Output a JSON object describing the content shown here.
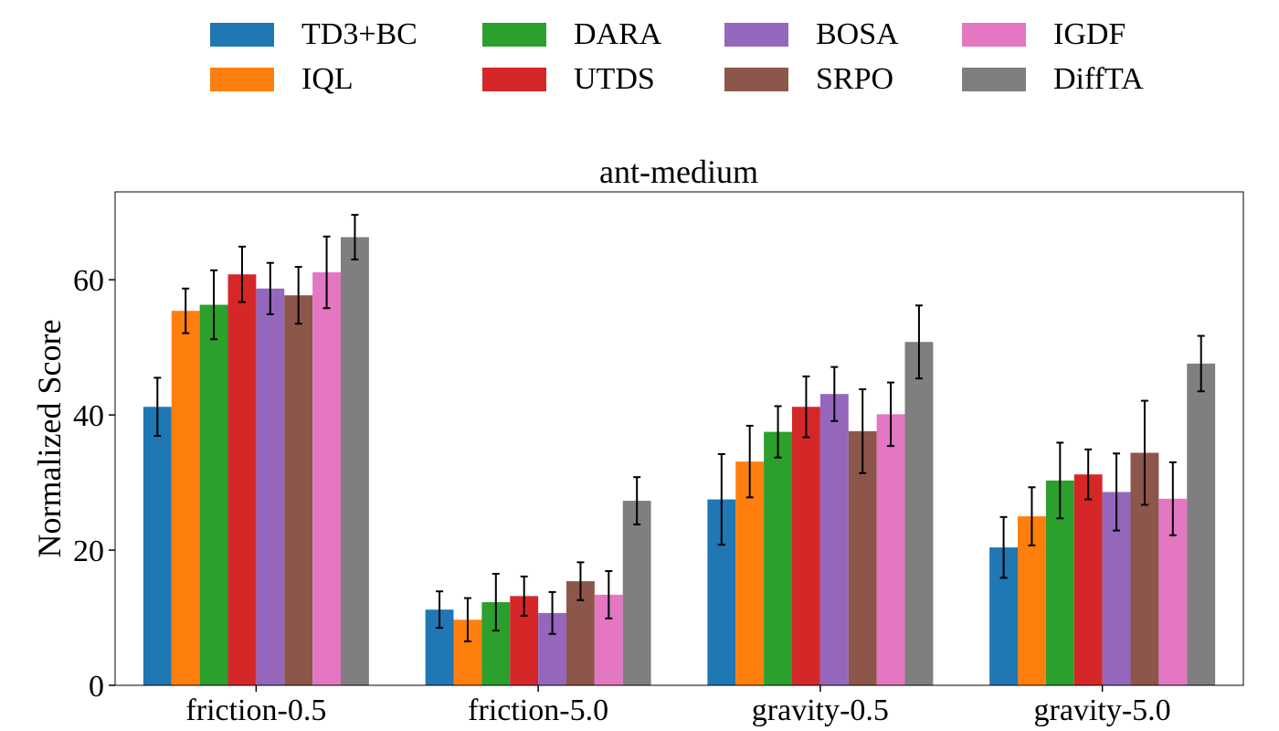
{
  "chart_data": {
    "type": "bar",
    "title": "ant-medium",
    "xlabel": "",
    "ylabel": "Normalized Score",
    "ylim": [
      0,
      73
    ],
    "yticks": [
      0,
      20,
      40,
      60
    ],
    "categories": [
      "friction-0.5",
      "friction-5.0",
      "gravity-0.5",
      "gravity-5.0"
    ],
    "legend_position": "top",
    "grid": false,
    "series": [
      {
        "name": "TD3+BC",
        "color": "#1f77b4",
        "values": [
          41.2,
          11.2,
          27.5,
          20.4
        ],
        "errors": [
          4.3,
          2.7,
          6.7,
          4.5
        ]
      },
      {
        "name": "IQL",
        "color": "#ff7f0e",
        "values": [
          55.4,
          9.7,
          33.1,
          25.0
        ],
        "errors": [
          3.3,
          3.2,
          5.3,
          4.3
        ]
      },
      {
        "name": "DARA",
        "color": "#2ca02c",
        "values": [
          56.3,
          12.3,
          37.5,
          30.3
        ],
        "errors": [
          5.1,
          4.2,
          3.8,
          5.6
        ]
      },
      {
        "name": "UTDS",
        "color": "#d62728",
        "values": [
          60.8,
          13.2,
          41.2,
          31.2
        ],
        "errors": [
          4.1,
          2.9,
          4.5,
          3.7
        ]
      },
      {
        "name": "BOSA",
        "color": "#9467bd",
        "values": [
          58.7,
          10.7,
          43.1,
          28.6
        ],
        "errors": [
          3.8,
          3.1,
          4.0,
          5.7
        ]
      },
      {
        "name": "SRPO",
        "color": "#8c564b",
        "values": [
          57.7,
          15.4,
          37.6,
          34.4
        ],
        "errors": [
          4.2,
          2.8,
          6.2,
          7.7
        ]
      },
      {
        "name": "IGDF",
        "color": "#e377c2",
        "values": [
          61.1,
          13.4,
          40.1,
          27.6
        ],
        "errors": [
          5.3,
          3.5,
          4.7,
          5.4
        ]
      },
      {
        "name": "DiffTA",
        "color": "#7f7f7f",
        "values": [
          66.3,
          27.3,
          50.8,
          47.6
        ],
        "errors": [
          3.3,
          3.5,
          5.4,
          4.1
        ]
      }
    ]
  }
}
